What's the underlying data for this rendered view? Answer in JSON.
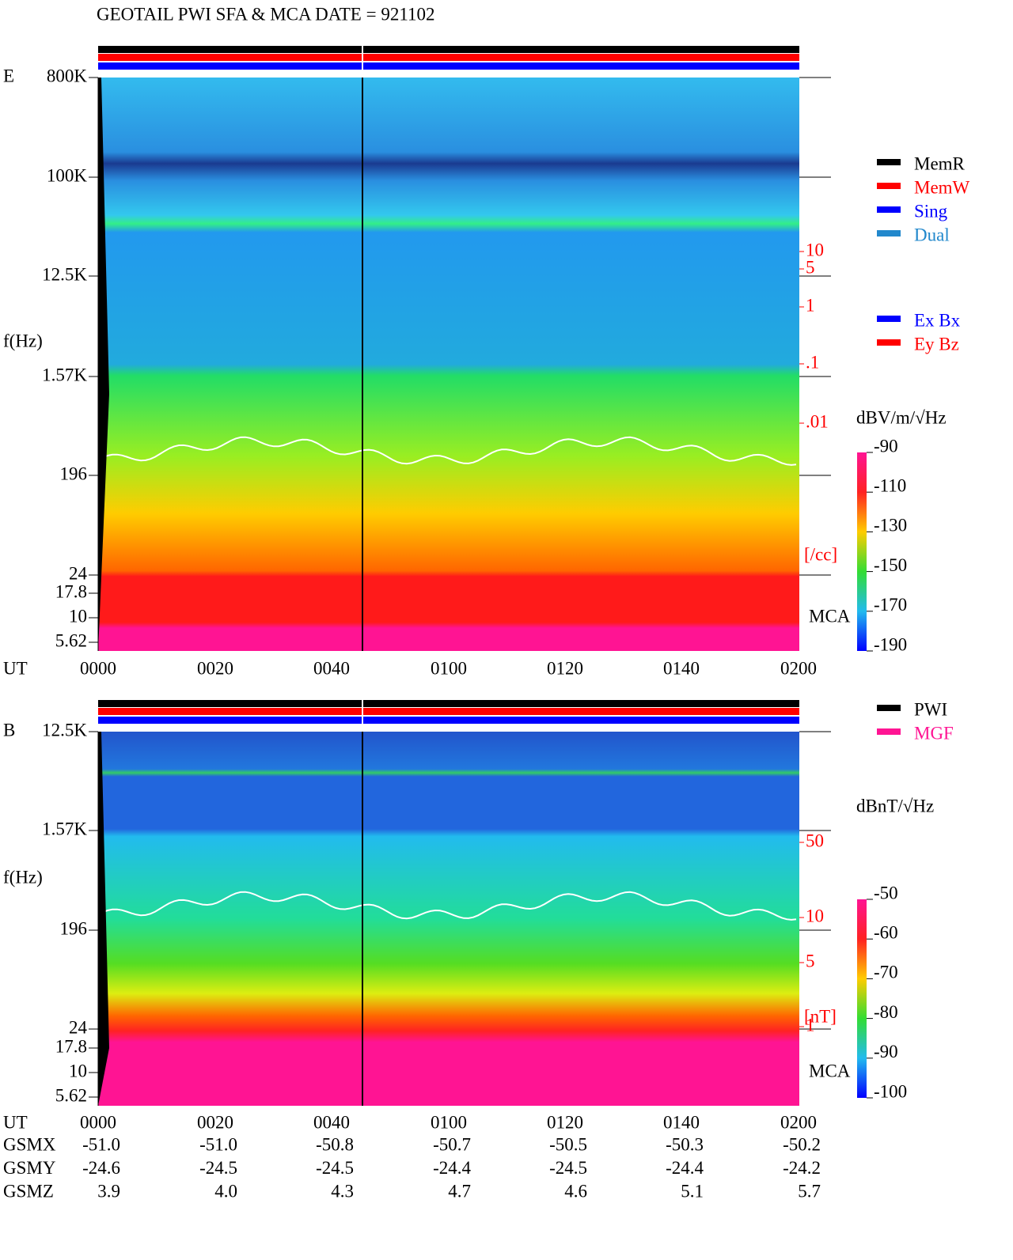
{
  "header": {
    "title": "GEOTAIL  PWI SFA & MCA   DATE = 921102"
  },
  "panel_e": {
    "label": "E",
    "y_label": "f(Hz)",
    "x_label": "UT",
    "y_ticks": [
      "800K",
      "100K",
      "12.5K",
      "1.57K",
      "196",
      "24",
      "17.8",
      "10",
      "5.62"
    ],
    "x_ticks": [
      "0000",
      "0020",
      "0040",
      "0100",
      "0120",
      "0140",
      "0200"
    ],
    "right_scale": [
      "10",
      "5",
      "1",
      ".1",
      ".01"
    ],
    "right_unit": "[/cc]",
    "mca": "MCA",
    "legend": [
      {
        "label": "MemR",
        "color": "#000000"
      },
      {
        "label": "MemW",
        "color": "#ff0000"
      },
      {
        "label": "Sing",
        "color": "#0000ff"
      },
      {
        "label": "Dual",
        "color": "#2288cc"
      }
    ],
    "legend2": [
      {
        "label": "Ex Bx",
        "color": "#0000ff"
      },
      {
        "label": "Ey Bz",
        "color": "#ff0000"
      }
    ],
    "colorbar": {
      "unit": "dBV/m/√Hz",
      "ticks": [
        "-90",
        "-110",
        "-130",
        "-150",
        "-170",
        "-190"
      ]
    }
  },
  "panel_b": {
    "label": "B",
    "y_label": "f(Hz)",
    "x_label": "UT",
    "y_ticks": [
      "12.5K",
      "1.57K",
      "196",
      "24",
      "17.8",
      "10",
      "5.62"
    ],
    "x_ticks": [
      "0000",
      "0020",
      "0040",
      "0100",
      "0120",
      "0140",
      "0200"
    ],
    "right_scale": [
      "50",
      "10",
      "5",
      "1"
    ],
    "right_unit": "[nT]",
    "mca": "MCA",
    "legend": [
      {
        "label": "PWI",
        "color": "#000000"
      },
      {
        "label": "MGF",
        "color": "#ff1493"
      }
    ],
    "colorbar": {
      "unit": "dBnT/√Hz",
      "ticks": [
        "-50",
        "-60",
        "-70",
        "-80",
        "-90",
        "-100"
      ]
    }
  },
  "orbit": {
    "rows": [
      {
        "label": "GSMX",
        "values": [
          "-51.0",
          "-51.0",
          "-50.8",
          "-50.7",
          "-50.5",
          "-50.3",
          "-50.2"
        ]
      },
      {
        "label": "GSMY",
        "values": [
          "-24.6",
          "-24.5",
          "-24.5",
          "-24.4",
          "-24.5",
          "-24.4",
          "-24.2"
        ]
      },
      {
        "label": "GSMZ",
        "values": [
          "3.9",
          "4.0",
          "4.3",
          "4.7",
          "4.6",
          "5.1",
          "5.7"
        ]
      }
    ]
  }
}
